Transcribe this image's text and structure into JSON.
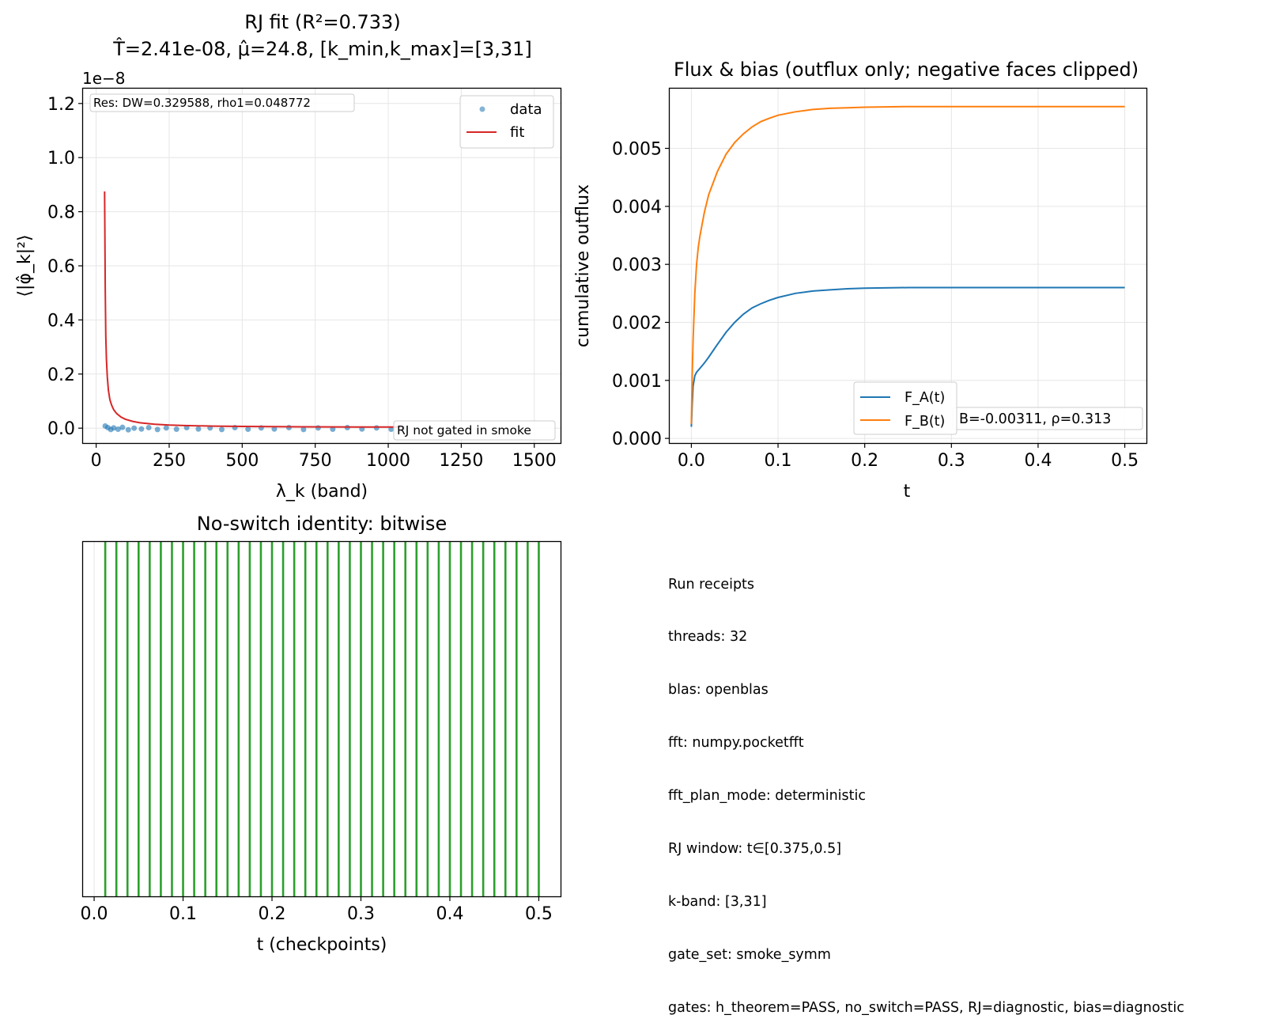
{
  "colors": {
    "data": "#1f77b4",
    "fit": "#d62728",
    "F_A": "#1f77b4",
    "F_B": "#ff7f0e",
    "checkpoint": "#2ca02c",
    "grid": "#e6e6e6"
  },
  "receipts": {
    "heading": "Run receipts",
    "lines": [
      "threads: 32",
      "blas: openblas",
      "fft: numpy.pocketfft",
      "fft_plan_mode: deterministic",
      "RJ window: t∈[0.375,0.5]",
      "k-band: [3,31]",
      "gate_set: smoke_symm",
      "gates: h_theorem=PASS, no_switch=PASS, RJ=diagnostic, bias=diagnostic"
    ]
  },
  "chart_data": [
    {
      "type": "scatter",
      "title": "RJ fit (R²=0.733)",
      "subtitle": "T̂=2.41e-08, μ̂=24.8, [k_min,k_max]=[3,31]",
      "xlabel": "λ_k (band)",
      "ylabel": "⟨|φ̂_k|²⟩",
      "offset_text": "1e−8",
      "xlim": [
        -45,
        1590
      ],
      "ylim": [
        -0.055,
        1.255
      ],
      "xticks": [
        0,
        250,
        500,
        750,
        1000,
        1250,
        1500
      ],
      "xtick_labels": [
        "0",
        "250",
        "500",
        "750",
        "1000",
        "1250",
        "1500"
      ],
      "yticks": [
        0.0,
        0.2,
        0.4,
        0.6,
        0.8,
        1.0,
        1.2
      ],
      "ytick_labels": [
        "0.0",
        "0.2",
        "0.4",
        "0.6",
        "0.8",
        "1.0",
        "1.2"
      ],
      "grid": true,
      "legend_position": "upper right",
      "annotations": [
        "Res: DW=0.329588, rho1=0.048772",
        "RJ not gated in smoke"
      ],
      "series": [
        {
          "name": "data",
          "kind": "scatter",
          "x": [
            31,
            40,
            50,
            60,
            75,
            90,
            110,
            130,
            155,
            180,
            210,
            240,
            275,
            310,
            350,
            390,
            430,
            475,
            520,
            565,
            610,
            660,
            710,
            760,
            810,
            860,
            910,
            960,
            1010,
            1050
          ],
          "y": [
            0.008,
            0.002,
            -0.005,
            0.001,
            -0.004,
            0.003,
            -0.006,
            0.0,
            -0.003,
            0.002,
            -0.005,
            0.001,
            -0.004,
            0.002,
            -0.003,
            0.001,
            -0.005,
            0.002,
            -0.004,
            0.001,
            -0.003,
            0.002,
            -0.005,
            0.001,
            -0.004,
            0.002,
            -0.003,
            0.001,
            -0.004,
            0.0
          ]
        },
        {
          "name": "fit",
          "kind": "line",
          "x": [
            29,
            31,
            33,
            35,
            38,
            42,
            47,
            53,
            60,
            70,
            85,
            100,
            125,
            150,
            200,
            250,
            300,
            400,
            500,
            600,
            700,
            800,
            900,
            1000,
            1050
          ],
          "y": [
            0.875,
            0.52,
            0.34,
            0.255,
            0.19,
            0.14,
            0.105,
            0.085,
            0.068,
            0.054,
            0.041,
            0.033,
            0.025,
            0.02,
            0.0145,
            0.0115,
            0.0095,
            0.0075,
            0.0063,
            0.0055,
            0.005,
            0.0046,
            0.0043,
            0.004,
            0.004
          ]
        }
      ]
    },
    {
      "type": "line",
      "title": "Flux & bias (outflux only; negative faces clipped)",
      "xlabel": "t",
      "ylabel": "cumulative outflux",
      "xlim": [
        -0.025,
        0.525
      ],
      "ylim": [
        -8e-05,
        0.00603
      ],
      "xticks": [
        0.0,
        0.1,
        0.2,
        0.3,
        0.4,
        0.5
      ],
      "xtick_labels": [
        "0.0",
        "0.1",
        "0.2",
        "0.3",
        "0.4",
        "0.5"
      ],
      "yticks": [
        0.0,
        0.001,
        0.002,
        0.003,
        0.004,
        0.005
      ],
      "ytick_labels": [
        "0.000",
        "0.001",
        "0.002",
        "0.003",
        "0.004",
        "0.005"
      ],
      "grid": true,
      "legend_position": "lower center",
      "annotations": [
        "B=-0.00311, ρ=0.313"
      ],
      "series": [
        {
          "name": "F_A(t)",
          "x": [
            0.0,
            0.001,
            0.002,
            0.004,
            0.006,
            0.01,
            0.015,
            0.02,
            0.03,
            0.04,
            0.05,
            0.06,
            0.07,
            0.08,
            0.09,
            0.1,
            0.12,
            0.14,
            0.16,
            0.18,
            0.2,
            0.25,
            0.3,
            0.35,
            0.4,
            0.45,
            0.5
          ],
          "y": [
            0.0002,
            0.0006,
            0.0009,
            0.00108,
            0.00114,
            0.00121,
            0.0013,
            0.0014,
            0.00162,
            0.00183,
            0.002,
            0.00214,
            0.00225,
            0.00232,
            0.00238,
            0.00243,
            0.0025,
            0.00254,
            0.00256,
            0.00258,
            0.00259,
            0.0026,
            0.0026,
            0.0026,
            0.0026,
            0.0026,
            0.0026
          ]
        },
        {
          "name": "F_B(t)",
          "x": [
            0.0,
            0.001,
            0.002,
            0.004,
            0.006,
            0.008,
            0.01,
            0.015,
            0.02,
            0.03,
            0.04,
            0.05,
            0.06,
            0.07,
            0.08,
            0.09,
            0.1,
            0.12,
            0.14,
            0.16,
            0.18,
            0.2,
            0.25,
            0.3,
            0.35,
            0.4,
            0.45,
            0.5
          ],
          "y": [
            0.00025,
            0.0011,
            0.0017,
            0.0025,
            0.003,
            0.0033,
            0.0035,
            0.0039,
            0.0042,
            0.0046,
            0.0049,
            0.0051,
            0.00525,
            0.00537,
            0.00546,
            0.00552,
            0.00557,
            0.00563,
            0.00567,
            0.00569,
            0.0057,
            0.00571,
            0.00572,
            0.00572,
            0.00572,
            0.00572,
            0.00572,
            0.00572
          ]
        }
      ]
    },
    {
      "type": "bar",
      "title": "No-switch identity: bitwise",
      "xlabel": "t (checkpoints)",
      "xlim": [
        -0.0125,
        0.5245
      ],
      "xticks": [
        0.0,
        0.1,
        0.2,
        0.3,
        0.4,
        0.5
      ],
      "xtick_labels": [
        "0.0",
        "0.1",
        "0.2",
        "0.3",
        "0.4",
        "0.5"
      ],
      "grid": true,
      "checkpoints": [
        0.0125,
        0.025,
        0.0375,
        0.05,
        0.0625,
        0.075,
        0.0875,
        0.1,
        0.1125,
        0.125,
        0.1375,
        0.15,
        0.1625,
        0.175,
        0.1875,
        0.2,
        0.2125,
        0.225,
        0.2375,
        0.25,
        0.2625,
        0.275,
        0.2875,
        0.3,
        0.3125,
        0.325,
        0.3375,
        0.35,
        0.3625,
        0.375,
        0.3875,
        0.4,
        0.4125,
        0.425,
        0.4375,
        0.45,
        0.4625,
        0.475,
        0.4875,
        0.5
      ]
    }
  ]
}
